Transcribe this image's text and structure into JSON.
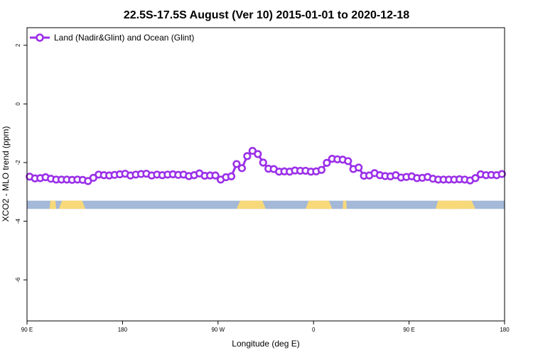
{
  "chart_data": {
    "type": "line",
    "title": "22.5S-17.5S August (Ver 10)   2015-01-01 to 2020-12-18",
    "xlabel": "Longitude (deg E)",
    "ylabel": "XCO2 - MLO trend (ppm)",
    "xlim": [
      90,
      450
    ],
    "ylim": [
      -7.4,
      2.6
    ],
    "x_ticks": [
      {
        "value": 90,
        "label": "90 E"
      },
      {
        "value": 162,
        "label": "180"
      },
      {
        "value": 234,
        "label": "90 W"
      },
      {
        "value": 306,
        "label": "0"
      },
      {
        "value": 378,
        "label": "90 E"
      },
      {
        "value": 450,
        "label": "180"
      }
    ],
    "y_ticks": [
      {
        "value": 2,
        "label": "2"
      },
      {
        "value": 0,
        "label": "0"
      },
      {
        "value": -2,
        "label": "-2"
      },
      {
        "value": -4,
        "label": "-4"
      },
      {
        "value": -6,
        "label": "-6"
      }
    ],
    "grid": false,
    "legend_position": "top-left",
    "series": [
      {
        "name": "Land (Nadir&Glint) and Ocean (Glint)",
        "color": "#9b30e8",
        "x": [
          92,
          96,
          100,
          104,
          108,
          112,
          116,
          120,
          124,
          128,
          132,
          136,
          140,
          144,
          148,
          152,
          156,
          160,
          164,
          168,
          172,
          176,
          180,
          184,
          188,
          192,
          196,
          200,
          204,
          208,
          212,
          216,
          220,
          224,
          228,
          232,
          236,
          240,
          244,
          248,
          252,
          256,
          260,
          264,
          268,
          272,
          276,
          280,
          284,
          288,
          292,
          296,
          300,
          304,
          308,
          312,
          316,
          320,
          324,
          328,
          332,
          336,
          340,
          344,
          348,
          352,
          356,
          360,
          364,
          368,
          372,
          376,
          380,
          384,
          388,
          392,
          396,
          400,
          404,
          408,
          412,
          416,
          420,
          424,
          428,
          432,
          436,
          440,
          444,
          448
        ],
        "values": [
          -2.48,
          -2.54,
          -2.53,
          -2.5,
          -2.55,
          -2.58,
          -2.58,
          -2.58,
          -2.59,
          -2.58,
          -2.59,
          -2.63,
          -2.52,
          -2.41,
          -2.43,
          -2.44,
          -2.42,
          -2.4,
          -2.38,
          -2.44,
          -2.41,
          -2.39,
          -2.38,
          -2.44,
          -2.41,
          -2.43,
          -2.41,
          -2.4,
          -2.42,
          -2.41,
          -2.46,
          -2.43,
          -2.37,
          -2.45,
          -2.44,
          -2.44,
          -2.58,
          -2.5,
          -2.47,
          -2.05,
          -2.19,
          -1.78,
          -1.6,
          -1.71,
          -2.0,
          -2.21,
          -2.22,
          -2.31,
          -2.3,
          -2.31,
          -2.27,
          -2.28,
          -2.28,
          -2.31,
          -2.3,
          -2.25,
          -2.01,
          -1.87,
          -1.89,
          -1.9,
          -1.95,
          -2.22,
          -2.17,
          -2.45,
          -2.44,
          -2.36,
          -2.43,
          -2.46,
          -2.47,
          -2.43,
          -2.51,
          -2.49,
          -2.47,
          -2.53,
          -2.52,
          -2.49,
          -2.55,
          -2.58,
          -2.58,
          -2.58,
          -2.58,
          -2.57,
          -2.58,
          -2.61,
          -2.53,
          -2.4,
          -2.43,
          -2.42,
          -2.43,
          -2.39
        ]
      }
    ],
    "surface_bar": {
      "y_range": [
        -3.58,
        -3.3
      ],
      "ocean_color": "#a4b8d8",
      "land_color": "#f8d97a",
      "land_segments": [
        [
          114,
          134
        ],
        [
          107,
          112
        ],
        [
          248,
          270
        ],
        [
          300,
          320
        ],
        [
          328,
          331
        ],
        [
          398,
          414
        ],
        [
          404,
          428
        ]
      ]
    }
  }
}
